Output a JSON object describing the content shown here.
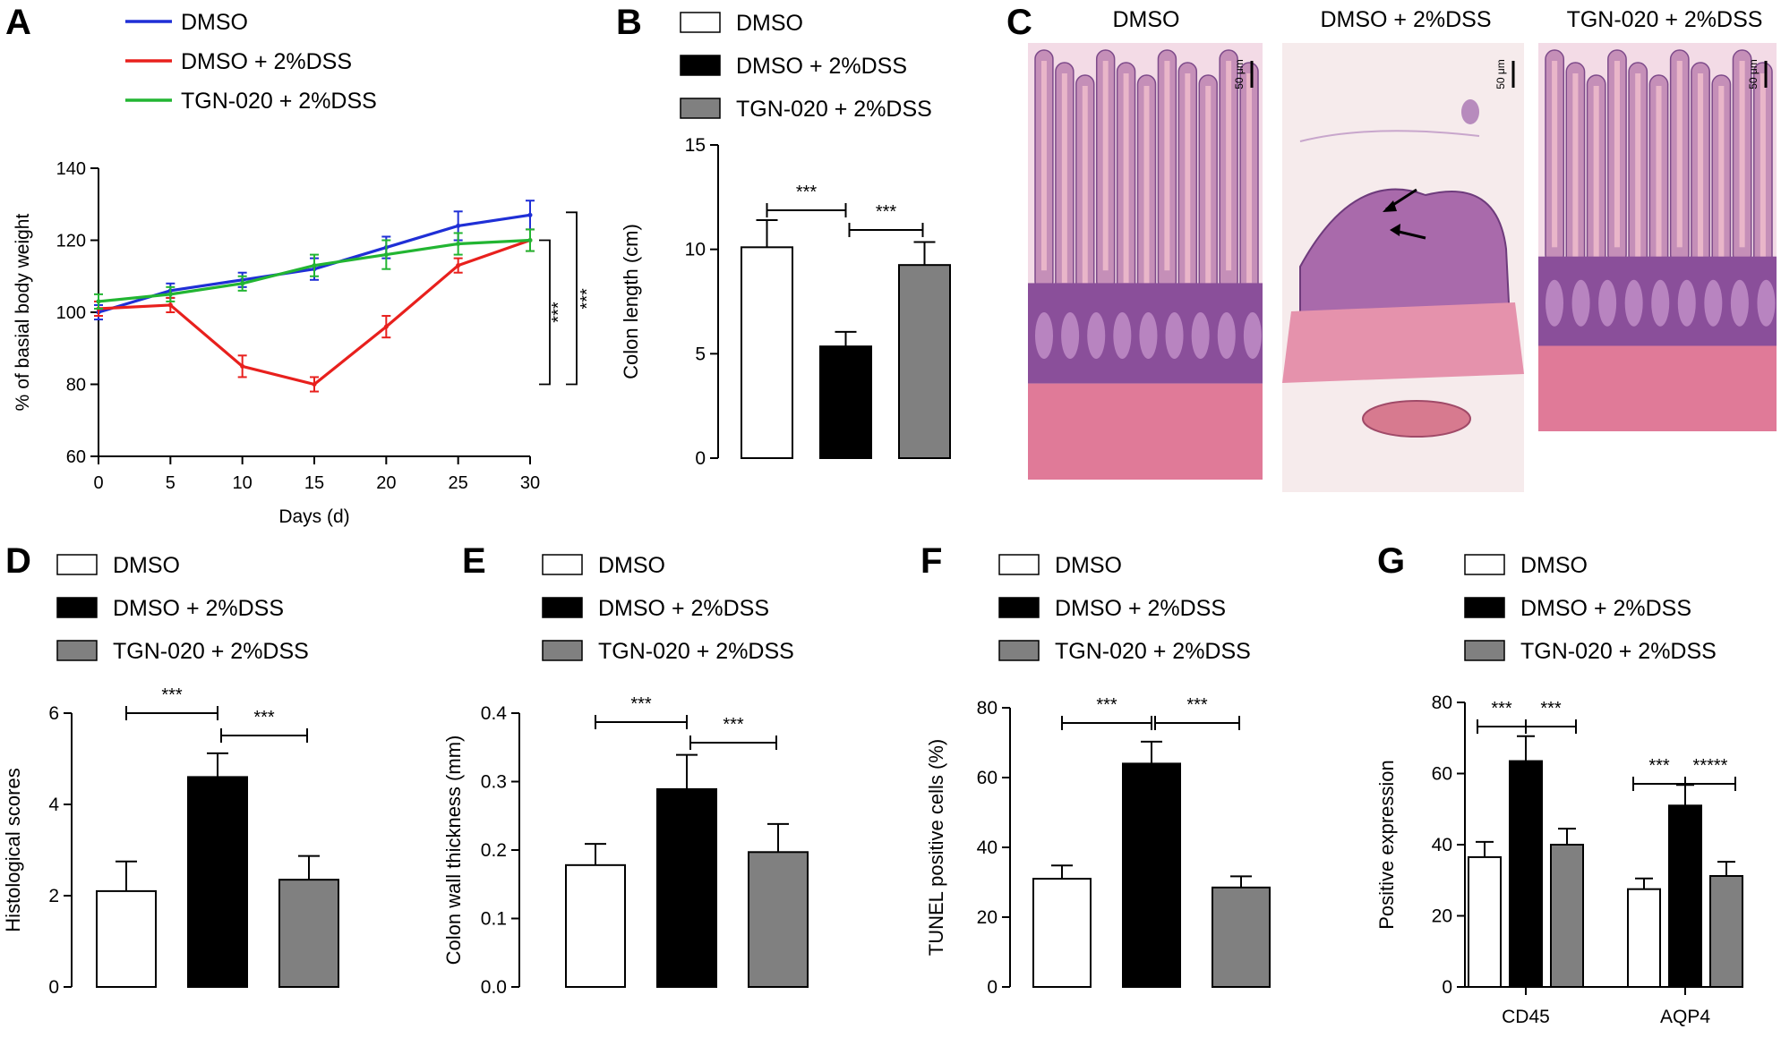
{
  "panels": {
    "A": {
      "letter": "A"
    },
    "B": {
      "letter": "B"
    },
    "C": {
      "letter": "C",
      "images": [
        {
          "title": "DMSO",
          "scale_bar": "50 μm"
        },
        {
          "title": "DMSO + 2%DSS",
          "scale_bar": "50 μm"
        },
        {
          "title": "TGN-020 + 2%DSS",
          "scale_bar": "50 μm"
        }
      ]
    },
    "D": {
      "letter": "D"
    },
    "E": {
      "letter": "E"
    },
    "F": {
      "letter": "F"
    },
    "G": {
      "letter": "G"
    }
  },
  "colors": {
    "line_DMSO": "#1f2fd6",
    "line_DSS": "#e8201d",
    "line_TGN": "#22b532",
    "bar_DMSO": "#ffffff",
    "bar_DSS": "#000000",
    "bar_TGN": "#808080"
  },
  "chart_data": [
    {
      "panel": "A",
      "type": "line",
      "x": [
        0,
        5,
        10,
        15,
        20,
        25,
        30
      ],
      "series": [
        {
          "name": "DMSO",
          "values": [
            100,
            106,
            109,
            112,
            118,
            124,
            127
          ],
          "errors": [
            2,
            2,
            2,
            3,
            3,
            4,
            4
          ]
        },
        {
          "name": "DMSO + 2%DSS",
          "values": [
            101,
            102,
            85,
            80,
            96,
            113,
            120
          ],
          "errors": [
            2,
            2,
            3,
            2,
            3,
            2,
            3
          ]
        },
        {
          "name": "TGN-020 + 2%DSS",
          "values": [
            103,
            105,
            108,
            113,
            116,
            119,
            120
          ],
          "errors": [
            2,
            2,
            2,
            3,
            4,
            3,
            3
          ]
        }
      ],
      "xlabel": "Days (d)",
      "ylabel": "% of basial body weight",
      "xlim": [
        0,
        30
      ],
      "ylim": [
        60,
        140
      ],
      "xticks": [
        "0",
        "5",
        "10",
        "15",
        "20",
        "25",
        "30"
      ],
      "yticks": [
        "60",
        "80",
        "100",
        "120",
        "140"
      ],
      "significance": [
        "***",
        "***"
      ],
      "legend": "top-left"
    },
    {
      "panel": "B",
      "type": "bar",
      "categories": [
        "DMSO",
        "DMSO + 2%DSS",
        "TGN-020 + 2%DSS"
      ],
      "values": [
        10.1,
        5.35,
        9.25
      ],
      "errors": [
        1.3,
        0.7,
        1.1
      ],
      "ylabel": "Colon length (cm)",
      "ylim": [
        0,
        15
      ],
      "yticks": [
        "0",
        "5",
        "10",
        "15"
      ],
      "significance": [
        "***",
        "***"
      ],
      "legend": "top"
    },
    {
      "panel": "D",
      "type": "bar",
      "categories": [
        "DMSO",
        "DMSO + 2%DSS",
        "TGN-020 + 2%DSS"
      ],
      "values": [
        2.1,
        4.6,
        2.35
      ],
      "errors": [
        0.65,
        0.52,
        0.52
      ],
      "ylabel": "Histological scores",
      "ylim": [
        0,
        6
      ],
      "yticks": [
        "0",
        "2",
        "4",
        "6"
      ],
      "significance": [
        "***",
        "***"
      ],
      "legend": "top"
    },
    {
      "panel": "E",
      "type": "bar",
      "categories": [
        "DMSO",
        "DMSO + 2%DSS",
        "TGN-020 + 2%DSS"
      ],
      "values": [
        0.178,
        0.289,
        0.197
      ],
      "errors": [
        0.031,
        0.05,
        0.041
      ],
      "ylabel": "Colon wall thickness (mm)",
      "ylim": [
        0,
        0.4
      ],
      "yticks": [
        "0.0",
        "0.1",
        "0.2",
        "0.3",
        "0.4"
      ],
      "significance": [
        "***",
        "***"
      ],
      "legend": "top"
    },
    {
      "panel": "F",
      "type": "bar",
      "categories": [
        "DMSO",
        "DMSO + 2%DSS",
        "TGN-020 + 2%DSS"
      ],
      "values": [
        31,
        64,
        28.5
      ],
      "errors": [
        3.8,
        6.3,
        3.2
      ],
      "ylabel": "TUNEL positive cells (%)",
      "ylim": [
        0,
        80
      ],
      "yticks": [
        "0",
        "20",
        "40",
        "60",
        "80"
      ],
      "significance": [
        "***",
        "***"
      ],
      "legend": "top"
    },
    {
      "panel": "G",
      "type": "bar",
      "categories": [
        "CD45",
        "AQP4"
      ],
      "series": [
        {
          "name": "DMSO",
          "values": [
            36.5,
            27.5
          ],
          "errors": [
            4.3,
            3.0
          ]
        },
        {
          "name": "DMSO + 2%DSS",
          "values": [
            63.5,
            51
          ],
          "errors": [
            7.0,
            5.8
          ]
        },
        {
          "name": "TGN-020 + 2%DSS",
          "values": [
            40,
            31.2
          ],
          "errors": [
            4.5,
            4.0
          ]
        }
      ],
      "ylabel": "Positive expression",
      "ylim": [
        0,
        80
      ],
      "yticks": [
        "0",
        "20",
        "40",
        "60",
        "80"
      ],
      "significance": [
        "***",
        "***",
        "***",
        "*****"
      ],
      "legend": "top"
    }
  ]
}
